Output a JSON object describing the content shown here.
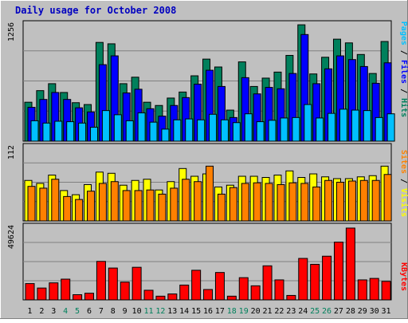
{
  "title": "Daily usage for October 2008",
  "colors": {
    "background": "#c0c0c0",
    "frame": "#ffffff",
    "title": "#0000c0",
    "hits": "#00805c",
    "files": "#0000ff",
    "pages": "#00c0ff",
    "visits": "#ffff00",
    "sites": "#ff8000",
    "kbytes": "#ff0000",
    "weekend_label": "#00805c",
    "weekday_label": "#000000"
  },
  "panels": {
    "top": {
      "max_label": "1256",
      "legend": [
        {
          "text": "Pages",
          "color": "#00c0ff"
        },
        {
          "text": " / ",
          "color": "#000000"
        },
        {
          "text": "Files",
          "color": "#0000ff"
        },
        {
          "text": " / ",
          "color": "#000000"
        },
        {
          "text": "Hits",
          "color": "#00805c"
        }
      ]
    },
    "middle": {
      "max_label": "112",
      "legend": [
        {
          "text": "Sites",
          "color": "#ff8000"
        },
        {
          "text": " / ",
          "color": "#000000"
        },
        {
          "text": "Visits",
          "color": "#ffff00"
        }
      ]
    },
    "bottom": {
      "max_label": "49624",
      "legend": [
        {
          "text": "KBytes",
          "color": "#ff0000"
        }
      ]
    }
  },
  "chart_data": {
    "type": "bar",
    "title": "Daily usage for October 2008",
    "categories": [
      "1",
      "2",
      "3",
      "4",
      "5",
      "6",
      "7",
      "8",
      "9",
      "10",
      "11",
      "12",
      "13",
      "14",
      "15",
      "16",
      "17",
      "18",
      "19",
      "20",
      "21",
      "22",
      "23",
      "24",
      "25",
      "26",
      "27",
      "28",
      "29",
      "30",
      "31"
    ],
    "weekend_days": [
      "4",
      "5",
      "11",
      "12",
      "18",
      "19",
      "25",
      "26"
    ],
    "panels": [
      {
        "ylim": [
          0,
          1256
        ],
        "max_label": "1256",
        "series": [
          {
            "name": "Hits",
            "values": [
              420,
              545,
              620,
              525,
              415,
              395,
              1065,
              1050,
              620,
              690,
              420,
              385,
              465,
              530,
              705,
              885,
              800,
              335,
              855,
              590,
              680,
              745,
              925,
              1255,
              725,
              905,
              1100,
              1060,
              935,
              730,
              1075
            ]
          },
          {
            "name": "Files",
            "values": [
              365,
              450,
              525,
              450,
              360,
              315,
              825,
              920,
              520,
              560,
              350,
              270,
              385,
              470,
              615,
              765,
              590,
              255,
              685,
              510,
              580,
              565,
              730,
              1150,
              620,
              780,
              920,
              880,
              805,
              625,
              845
            ]
          },
          {
            "name": "Pages",
            "values": [
              220,
              195,
              215,
              210,
              195,
              150,
              330,
              285,
              220,
              305,
              205,
              130,
              230,
              240,
              230,
              290,
              230,
              200,
              295,
              210,
              225,
              250,
              255,
              395,
              250,
              300,
              345,
              335,
              330,
              255,
              295
            ]
          }
        ]
      },
      {
        "ylim": [
          0,
          112
        ],
        "max_label": "112",
        "series": [
          {
            "name": "Visits",
            "values": [
              68,
              63,
              77,
              51,
              44,
              61,
              82,
              80,
              60,
              68,
              70,
              52,
              66,
              88,
              75,
              79,
              57,
              60,
              75,
              75,
              73,
              77,
              84,
              73,
              79,
              74,
              71,
              71,
              74,
              76,
              92
            ]
          },
          {
            "name": "Sites",
            "values": [
              58,
              55,
              70,
              41,
              36,
              50,
              63,
              66,
              51,
              51,
              52,
              45,
              55,
              70,
              66,
              92,
              45,
              56,
              63,
              64,
              63,
              61,
              64,
              63,
              57,
              68,
              65,
              67,
              68,
              68,
              78
            ]
          }
        ]
      },
      {
        "ylim": [
          0,
          49624
        ],
        "max_label": "49624",
        "series": [
          {
            "name": "KBytes",
            "values": [
              11000,
              8000,
              11500,
              14000,
              3500,
              4500,
              26000,
              21500,
              12000,
              22000,
              6500,
              2500,
              4000,
              10000,
              20000,
              7000,
              18500,
              2500,
              15000,
              9500,
              23000,
              13500,
              3000,
              28000,
              24000,
              29500,
              39000,
              48500,
              13500,
              14500,
              12500
            ]
          }
        ]
      }
    ]
  }
}
